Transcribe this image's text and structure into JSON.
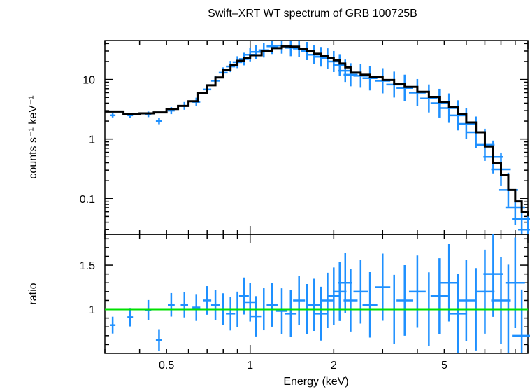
{
  "colors": {
    "data": "#1e90ff",
    "model": "#000000",
    "unity_line": "#00e000",
    "axes": "#000000"
  },
  "chart_data": [
    {
      "type": "line",
      "title": "Swift–XRT WT spectrum of GRB 100725B",
      "xlabel": "",
      "ylabel": "counts s⁻¹ keV⁻¹",
      "xscale": "log",
      "yscale": "log",
      "xlim": [
        0.3,
        10
      ],
      "ylim": [
        0.025,
        45
      ],
      "xticks": [
        0.5,
        1,
        2,
        5
      ],
      "yticks": [
        0.1,
        1,
        10
      ],
      "ytick_labels": [
        "0.1",
        "1",
        "10"
      ],
      "series": [
        {
          "style": "crosses",
          "x": [
            0.32,
            0.37,
            0.43,
            0.47,
            0.52,
            0.58,
            0.64,
            0.7,
            0.75,
            0.8,
            0.85,
            0.9,
            0.95,
            1.0,
            1.05,
            1.12,
            1.2,
            1.3,
            1.4,
            1.5,
            1.6,
            1.7,
            1.8,
            1.9,
            2.0,
            2.1,
            2.2,
            2.3,
            2.5,
            2.7,
            3.0,
            3.3,
            3.6,
            4.0,
            4.4,
            4.8,
            5.2,
            5.6,
            6.0,
            6.5,
            7.0,
            7.5,
            8.0,
            8.5,
            9.0,
            9.5,
            10.0
          ],
          "y": [
            2.5,
            2.5,
            2.6,
            2.0,
            3.0,
            3.6,
            4.2,
            6.8,
            9.5,
            13,
            16.5,
            19.5,
            22,
            26,
            29,
            31,
            36,
            37,
            34,
            33,
            30,
            26,
            24,
            22.5,
            20,
            17.5,
            14,
            12,
            11.5,
            10.5,
            9.5,
            8.2,
            7.2,
            6.0,
            4.8,
            4.0,
            3.3,
            2.5,
            1.8,
            1.3,
            0.8,
            0.5,
            0.31,
            0.14,
            0.07,
            0.045,
            0.03
          ]
        },
        {
          "style": "step",
          "x": [
            0.3,
            0.35,
            0.4,
            0.45,
            0.5,
            0.55,
            0.6,
            0.65,
            0.7,
            0.75,
            0.8,
            0.85,
            0.9,
            0.95,
            1.0,
            1.1,
            1.2,
            1.3,
            1.4,
            1.5,
            1.6,
            1.7,
            1.8,
            1.9,
            2.0,
            2.1,
            2.2,
            2.3,
            2.5,
            2.7,
            3.0,
            3.3,
            3.6,
            4.0,
            4.4,
            4.8,
            5.2,
            5.6,
            6.0,
            6.5,
            7.0,
            7.5,
            8.0,
            8.5,
            9.0,
            9.5,
            10.0
          ],
          "y": [
            2.9,
            2.6,
            2.7,
            2.8,
            3.2,
            3.6,
            4.3,
            6.0,
            8.0,
            10.8,
            14.5,
            17.5,
            20.5,
            23,
            25.5,
            30,
            33.5,
            36,
            35.5,
            33,
            30,
            27,
            25,
            23,
            21,
            18.5,
            16,
            13,
            12,
            11,
            9.8,
            8.5,
            7.5,
            6.2,
            5.1,
            4.2,
            3.4,
            2.6,
            1.9,
            1.3,
            0.75,
            0.4,
            0.25,
            0.14,
            0.09,
            0.06,
            0.05
          ]
        }
      ]
    },
    {
      "type": "line",
      "title": "",
      "xlabel": "Energy (keV)",
      "ylabel": "ratio",
      "xscale": "log",
      "xlim": [
        0.3,
        10
      ],
      "ylim": [
        0.5,
        1.85
      ],
      "xticks": [
        0.5,
        1,
        2,
        5
      ],
      "xtick_labels": [
        "0.5",
        "1",
        "2",
        "5"
      ],
      "yticks": [
        1,
        1.5
      ],
      "ytick_labels": [
        "1",
        "1.5"
      ],
      "series": [
        {
          "style": "crosses",
          "x": [
            0.32,
            0.37,
            0.43,
            0.47,
            0.52,
            0.58,
            0.64,
            0.7,
            0.75,
            0.8,
            0.85,
            0.9,
            0.95,
            1.0,
            1.05,
            1.12,
            1.2,
            1.3,
            1.4,
            1.5,
            1.6,
            1.7,
            1.8,
            1.9,
            2.0,
            2.1,
            2.2,
            2.3,
            2.5,
            2.7,
            3.0,
            3.3,
            3.6,
            4.0,
            4.4,
            4.8,
            5.2,
            5.6,
            6.0,
            6.5,
            7.0,
            7.5,
            8.0,
            8.5,
            9.0,
            9.5
          ],
          "y": [
            0.82,
            0.91,
            0.99,
            0.65,
            1.05,
            1.05,
            1.02,
            1.1,
            1.05,
            1.0,
            0.95,
            1.0,
            1.15,
            1.08,
            0.92,
            1.0,
            1.05,
            0.98,
            0.95,
            1.1,
            1.0,
            1.05,
            0.95,
            1.1,
            1.15,
            1.2,
            1.3,
            1.1,
            1.2,
            1.05,
            1.25,
            1.0,
            1.1,
            1.2,
            1.0,
            1.15,
            1.3,
            0.95,
            1.1,
            1.0,
            1.2,
            1.4,
            1.1,
            1.0,
            1.3,
            0.7
          ]
        },
        {
          "style": "line",
          "x": [
            0.3,
            10
          ],
          "y": [
            1,
            1
          ]
        }
      ]
    }
  ]
}
